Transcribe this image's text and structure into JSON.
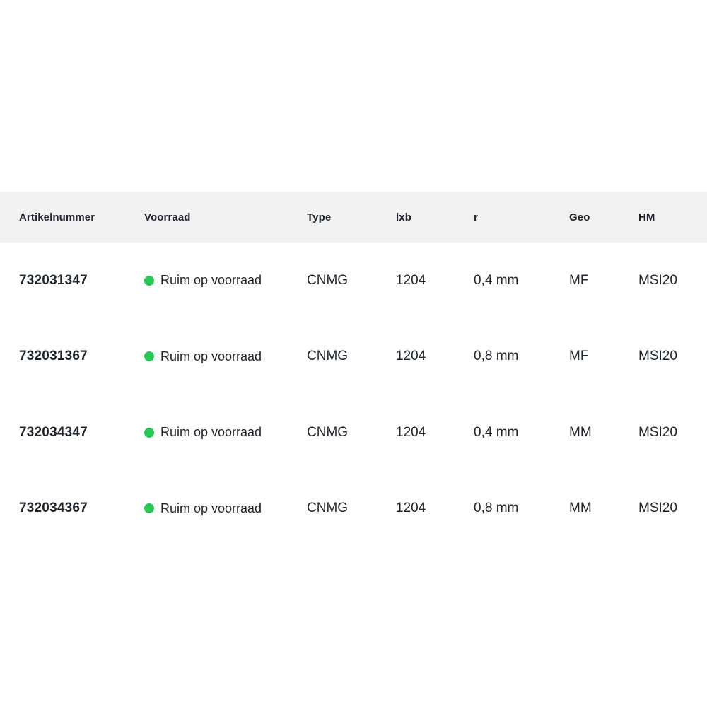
{
  "colors": {
    "header_bg": "#f1f1f2",
    "text": "#1f252c",
    "stock_available_green": "#27c853",
    "page_bg": "#ffffff"
  },
  "table": {
    "columns": [
      {
        "key": "artikelnummer",
        "label": "Artikelnummer"
      },
      {
        "key": "voorraad",
        "label": "Voorraad"
      },
      {
        "key": "type",
        "label": "Type"
      },
      {
        "key": "lxb",
        "label": "lxb"
      },
      {
        "key": "r",
        "label": "r"
      },
      {
        "key": "geo",
        "label": "Geo"
      },
      {
        "key": "hm",
        "label": "HM"
      }
    ],
    "stock_icon": "stock-available-dot",
    "rows": [
      {
        "artikelnummer": "732031347",
        "voorraad": "Ruim op voorraad",
        "type": "CNMG",
        "lxb": "1204",
        "r": "0,4 mm",
        "geo": "MF",
        "hm": "MSI20"
      },
      {
        "artikelnummer": "732031367",
        "voorraad": "Ruim op voorraad",
        "type": "CNMG",
        "lxb": "1204",
        "r": "0,8 mm",
        "geo": "MF",
        "hm": "MSI20"
      },
      {
        "artikelnummer": "732034347",
        "voorraad": "Ruim op voorraad",
        "type": "CNMG",
        "lxb": "1204",
        "r": "0,4 mm",
        "geo": "MM",
        "hm": "MSI20"
      },
      {
        "artikelnummer": "732034367",
        "voorraad": "Ruim op voorraad",
        "type": "CNMG",
        "lxb": "1204",
        "r": "0,8 mm",
        "geo": "MM",
        "hm": "MSI20"
      }
    ]
  }
}
